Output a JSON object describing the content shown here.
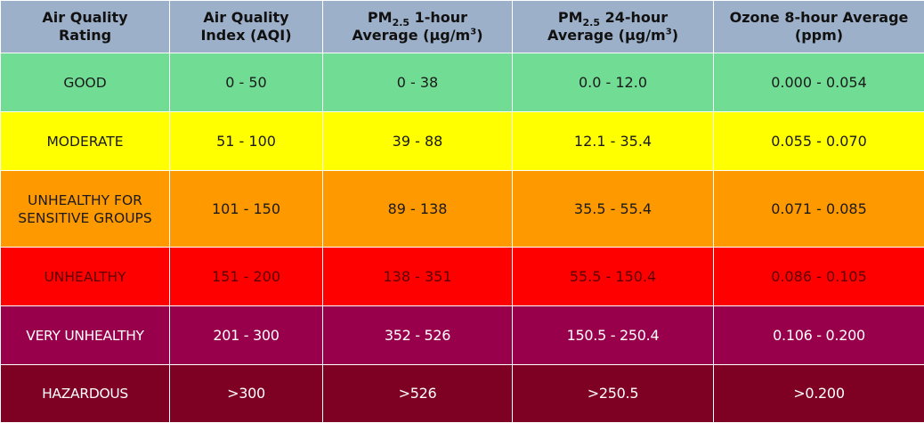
{
  "table": {
    "headers": [
      {
        "line1": "Air Quality",
        "line2": "Rating"
      },
      {
        "line1": "Air Quality",
        "line2": "Index (AQI)"
      },
      {
        "pre": "PM",
        "sub": "2.5",
        "post": " 1-hour",
        "line2_pre": "Average (µg/m",
        "sup": "3",
        "line2_post": ")"
      },
      {
        "pre": "PM",
        "sub": "2.5",
        "post": " 24-hour",
        "line2_pre": "Average (µg/m",
        "sup": "3",
        "line2_post": ")"
      },
      {
        "line1": "Ozone 8-hour Average",
        "line2": "(ppm)"
      }
    ],
    "rows": [
      {
        "rating": "GOOD",
        "rating_line2": "",
        "aqi": "0 - 50",
        "pm25_1h": "0 - 38",
        "pm25_24h": "0.0 - 12.0",
        "ozone_8h": "0.000 - 0.054",
        "bg": "#70dc94",
        "fg": "#1a1a1a"
      },
      {
        "rating": "MODERATE",
        "rating_line2": "",
        "aqi": "51 - 100",
        "pm25_1h": "39 - 88",
        "pm25_24h": "12.1 - 35.4",
        "ozone_8h": "0.055 - 0.070",
        "bg": "#ffff00",
        "fg": "#1a1a1a"
      },
      {
        "rating": "UNHEALTHY FOR",
        "rating_line2": "SENSITIVE GROUPS",
        "aqi": "101 - 150",
        "pm25_1h": "89 - 138",
        "pm25_24h": "35.5 - 55.4",
        "ozone_8h": "0.071 - 0.085",
        "bg": "#ff9900",
        "fg": "#1a1a1a"
      },
      {
        "rating": "UNHEALTHY",
        "rating_line2": "",
        "aqi": "151 - 200",
        "pm25_1h": "138 - 351",
        "pm25_24h": "55.5 - 150.4",
        "ozone_8h": "0.086 - 0.105",
        "bg": "#ff0000",
        "fg": "#5a0000"
      },
      {
        "rating": "VERY UNHEALTHY",
        "rating_line2": "",
        "aqi": "201 - 300",
        "pm25_1h": "352 - 526",
        "pm25_24h": "150.5 - 250.4",
        "ozone_8h": "0.106 - 0.200",
        "bg": "#99004c",
        "fg": "#ffffff"
      },
      {
        "rating": "HAZARDOUS",
        "rating_line2": "",
        "aqi": ">300",
        "pm25_1h": ">526",
        "pm25_24h": ">250.5",
        "ozone_8h": ">0.200",
        "bg": "#7e0023",
        "fg": "#ffffff"
      }
    ]
  },
  "colors": {
    "header_bg": "#9db0c9",
    "border": "#ffffff"
  }
}
